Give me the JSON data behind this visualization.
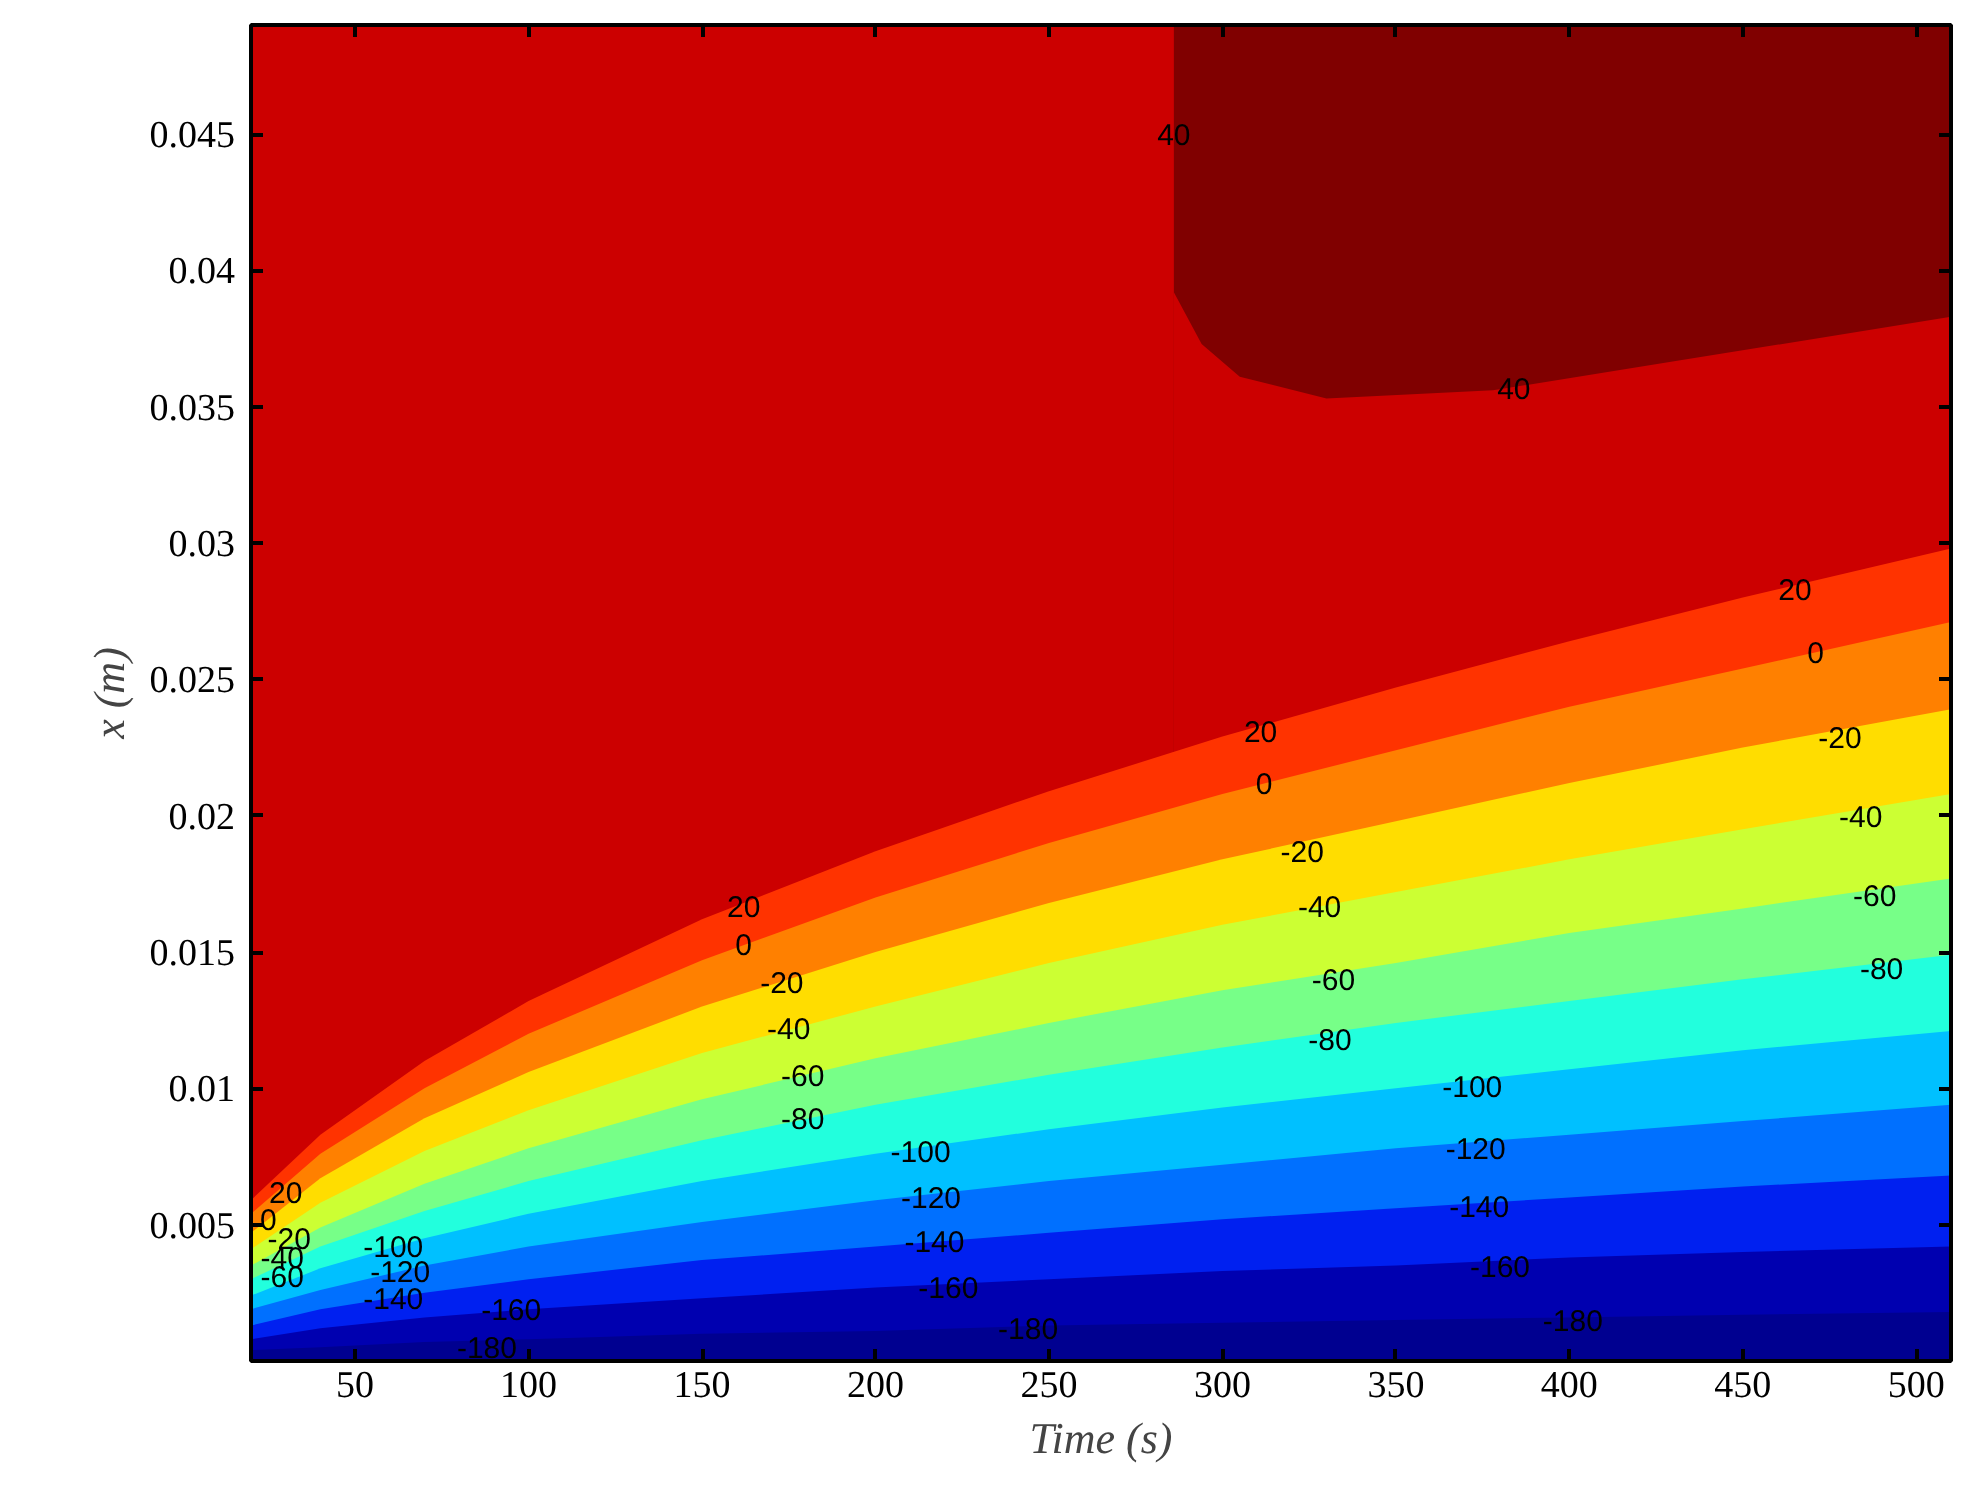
{
  "chart_data": {
    "type": "area",
    "xlabel": "Time (s)",
    "ylabel": "x (m)",
    "x": [
      20,
      40,
      70,
      100,
      150,
      200,
      250,
      300,
      350,
      400,
      450,
      510
    ],
    "xlim": [
      20,
      510
    ],
    "ylim": [
      0,
      0.049
    ],
    "xticks": [
      50,
      100,
      150,
      200,
      250,
      300,
      350,
      400,
      450,
      500
    ],
    "yticks": [
      0.005,
      0.01,
      0.015,
      0.02,
      0.025,
      0.03,
      0.035,
      0.04,
      0.045
    ],
    "bands": [
      {
        "axis": "y",
        "from": 0,
        "to": 0.049,
        "color": "#800000"
      },
      {
        "axis": "x",
        "from": 20,
        "to": 286,
        "color": "#cc0000"
      }
    ],
    "series": [
      {
        "color": "#cc0000",
        "x": [
          286,
          294,
          305,
          330,
          378,
          432,
          510
        ],
        "values": [
          0.0392,
          0.0373,
          0.0361,
          0.0353,
          0.0356,
          0.0367,
          0.0383
        ]
      },
      {
        "color": "#ff3300",
        "values": [
          0.0059,
          0.0083,
          0.011,
          0.0132,
          0.0162,
          0.0187,
          0.0209,
          0.0229,
          0.0247,
          0.0264,
          0.028,
          0.0298
        ]
      },
      {
        "color": "#ff8000",
        "values": [
          0.0054,
          0.0076,
          0.01,
          0.012,
          0.0147,
          0.017,
          0.019,
          0.0208,
          0.0224,
          0.024,
          0.0254,
          0.0271
        ]
      },
      {
        "color": "#ffdd00",
        "values": [
          0.0047,
          0.0067,
          0.0089,
          0.0106,
          0.013,
          0.015,
          0.0168,
          0.0184,
          0.0198,
          0.0212,
          0.0225,
          0.0239
        ]
      },
      {
        "color": "#ccff33",
        "values": [
          0.0041,
          0.0058,
          0.0077,
          0.0092,
          0.0113,
          0.013,
          0.0146,
          0.016,
          0.0172,
          0.0184,
          0.0195,
          0.0208
        ]
      },
      {
        "color": "#77ff88",
        "values": [
          0.0035,
          0.0049,
          0.0065,
          0.0078,
          0.0096,
          0.0111,
          0.0124,
          0.0136,
          0.0146,
          0.0157,
          0.0166,
          0.0177
        ]
      },
      {
        "color": "#22ffdd",
        "values": [
          0.003,
          0.0042,
          0.0055,
          0.0066,
          0.0081,
          0.0094,
          0.0105,
          0.0115,
          0.0124,
          0.0132,
          0.014,
          0.0149
        ]
      },
      {
        "color": "#00c0ff",
        "values": [
          0.0024,
          0.0034,
          0.0045,
          0.0054,
          0.0066,
          0.0076,
          0.0085,
          0.0093,
          0.01,
          0.0107,
          0.0114,
          0.0121
        ]
      },
      {
        "color": "#0070ff",
        "values": [
          0.0019,
          0.0026,
          0.0035,
          0.0042,
          0.0051,
          0.0059,
          0.0066,
          0.0072,
          0.0078,
          0.0083,
          0.0088,
          0.0094
        ]
      },
      {
        "color": "#0020f0",
        "values": [
          0.0013,
          0.0019,
          0.0025,
          0.003,
          0.0037,
          0.0042,
          0.0047,
          0.0052,
          0.0056,
          0.006,
          0.0064,
          0.0068
        ]
      },
      {
        "color": "#0000b0",
        "values": [
          0.0008,
          0.0012,
          0.0016,
          0.0019,
          0.0023,
          0.0027,
          0.003,
          0.0033,
          0.0035,
          0.0038,
          0.004,
          0.0042
        ]
      },
      {
        "color": "#000090",
        "values": [
          0.0004,
          0.0005,
          0.0007,
          0.0008,
          0.001,
          0.0011,
          0.0013,
          0.0014,
          0.0015,
          0.0016,
          0.0017,
          0.0018
        ]
      }
    ],
    "annotations": [
      {
        "text": "40",
        "x": 286,
        "y": 0.045
      },
      {
        "text": "40",
        "x": 384,
        "y": 0.0357
      },
      {
        "text": "20",
        "x": 465,
        "y": 0.0283
      },
      {
        "text": "0",
        "x": 471,
        "y": 0.026
      },
      {
        "text": "-20",
        "x": 478,
        "y": 0.0229
      },
      {
        "text": "-40",
        "x": 484,
        "y": 0.02
      },
      {
        "text": "-60",
        "x": 488,
        "y": 0.0171
      },
      {
        "text": "-80",
        "x": 490,
        "y": 0.0144
      },
      {
        "text": "20",
        "x": 311,
        "y": 0.0231
      },
      {
        "text": "0",
        "x": 312,
        "y": 0.0212
      },
      {
        "text": "-20",
        "x": 323,
        "y": 0.0187
      },
      {
        "text": "-40",
        "x": 328,
        "y": 0.0167
      },
      {
        "text": "-60",
        "x": 332,
        "y": 0.014
      },
      {
        "text": "-80",
        "x": 331,
        "y": 0.0118
      },
      {
        "text": "-100",
        "x": 372,
        "y": 0.0101
      },
      {
        "text": "-120",
        "x": 373,
        "y": 0.0078
      },
      {
        "text": "-140",
        "x": 374,
        "y": 0.0057
      },
      {
        "text": "-160",
        "x": 380,
        "y": 0.0035
      },
      {
        "text": "-180",
        "x": 401,
        "y": 0.0015
      },
      {
        "text": "20",
        "x": 162,
        "y": 0.0167
      },
      {
        "text": "0",
        "x": 162,
        "y": 0.0153
      },
      {
        "text": "-20",
        "x": 173,
        "y": 0.0139
      },
      {
        "text": "-40",
        "x": 175,
        "y": 0.0122
      },
      {
        "text": "-60",
        "x": 179,
        "y": 0.0105
      },
      {
        "text": "-80",
        "x": 179,
        "y": 0.0089
      },
      {
        "text": "-100",
        "x": 213,
        "y": 0.0077
      },
      {
        "text": "-120",
        "x": 216,
        "y": 0.006
      },
      {
        "text": "-140",
        "x": 217,
        "y": 0.0044
      },
      {
        "text": "-160",
        "x": 221,
        "y": 0.0027
      },
      {
        "text": "-180",
        "x": 244,
        "y": 0.0012
      },
      {
        "text": "20",
        "x": 30,
        "y": 0.0062
      },
      {
        "text": "0",
        "x": 25,
        "y": 0.0052
      },
      {
        "text": "-20",
        "x": 31,
        "y": 0.0045
      },
      {
        "text": "-40",
        "x": 29,
        "y": 0.0038
      },
      {
        "text": "-60",
        "x": 29,
        "y": 0.0031
      },
      {
        "text": "-100",
        "x": 61,
        "y": 0.0042
      },
      {
        "text": "-120",
        "x": 63,
        "y": 0.0033
      },
      {
        "text": "-140",
        "x": 61,
        "y": 0.0023
      },
      {
        "text": "-160",
        "x": 95,
        "y": 0.0019
      },
      {
        "text": "-180",
        "x": 88,
        "y": 0.0005
      }
    ]
  }
}
